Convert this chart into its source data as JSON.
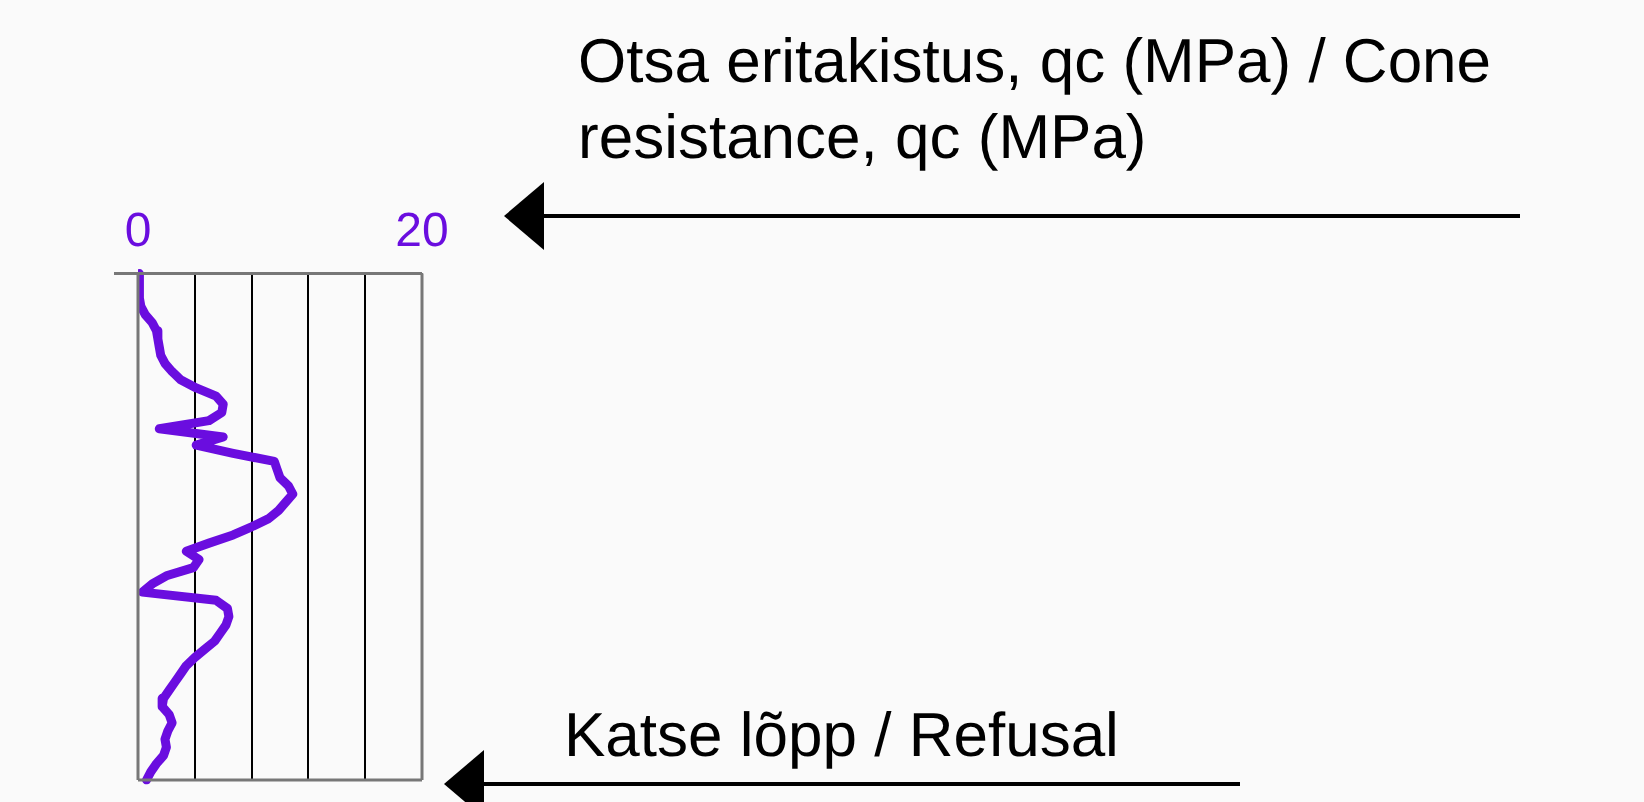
{
  "chart_data": {
    "type": "line",
    "orientation": "horizontal",
    "xlabel": "Otsa eritakistus, qc (MPa) / Cone resistance, qc (MPa)",
    "annotations": [
      "Katse lõpp / Refusal"
    ],
    "categories": [
      null,
      null,
      null,
      null,
      null,
      null,
      null,
      null,
      null,
      null,
      null,
      null,
      null,
      null,
      null,
      null,
      null,
      null,
      null,
      null,
      null,
      null,
      null,
      null,
      null,
      null,
      null,
      null,
      null,
      null,
      null,
      null,
      null,
      null,
      null,
      null,
      null,
      null,
      null,
      null,
      null,
      null,
      null,
      null,
      null,
      null,
      null,
      null,
      null,
      null,
      null,
      null,
      null,
      null,
      null,
      null,
      null,
      null,
      null,
      null,
      null,
      null,
      null
    ],
    "values": [
      0.1,
      0.1,
      0.1,
      0.1,
      0.2,
      0.5,
      1.0,
      1.3,
      1.4,
      1.5,
      1.6,
      1.9,
      2.4,
      3.0,
      4.1,
      5.5,
      6.0,
      5.9,
      5.0,
      1.5,
      6.0,
      4.1,
      6.7,
      9.6,
      9.8,
      10.0,
      10.6,
      10.9,
      10.4,
      9.9,
      9.2,
      8.0,
      6.7,
      5.0,
      3.4,
      4.3,
      3.9,
      2.0,
      1.0,
      0.3,
      5.5,
      6.3,
      6.4,
      6.2,
      5.8,
      5.4,
      4.7,
      4.0,
      3.4,
      3.0,
      2.6,
      2.2,
      1.8,
      1.7,
      2.2,
      2.4,
      2.1,
      1.9,
      2.0,
      1.8,
      1.3,
      0.9,
      0.6
    ],
    "color": "#6a0ddf",
    "xlim": [
      0,
      20
    ],
    "xticks": [
      0,
      {
        "value": 4,
        "label": null
      },
      {
        "value": 8,
        "label": null
      },
      {
        "value": 12,
        "label": null
      },
      {
        "value": 16,
        "label": null
      },
      20
    ],
    "grid": "x",
    "marker": "none",
    "line_style": "solid"
  }
}
